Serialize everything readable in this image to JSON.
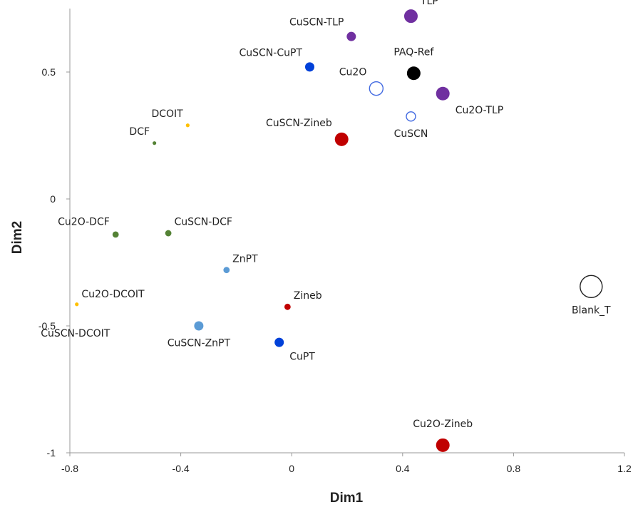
{
  "chart_data": {
    "type": "scatter",
    "title": "",
    "xlabel": "Dim1",
    "ylabel": "Dim2",
    "xlim": [
      -0.8,
      1.2
    ],
    "ylim": [
      -1,
      0.75
    ],
    "xticks": [
      -0.8,
      -0.4,
      0,
      0.4,
      0.8,
      1.2
    ],
    "xtick_labels": [
      "-0.8",
      "-0.4",
      "0",
      "0.4",
      "0.8",
      "1.2"
    ],
    "yticks": [
      -1,
      -0.5,
      0,
      0.5
    ],
    "ytick_labels": [
      "-1",
      "-0.5",
      "0",
      "0.5"
    ],
    "grid": false,
    "legend": "none",
    "points": [
      {
        "label": "TLP",
        "x": 0.43,
        "y": 0.72,
        "color": "#7030a0",
        "fill": true,
        "size": "large",
        "label_pos": "upper-right"
      },
      {
        "label": "CuSCN-TLP",
        "x": 0.215,
        "y": 0.64,
        "color": "#7030a0",
        "fill": true,
        "size": "medium",
        "label_pos": "upper-left"
      },
      {
        "label": "CuSCN-CuPT",
        "x": 0.065,
        "y": 0.52,
        "color": "#0041d9",
        "fill": true,
        "size": "medium",
        "label_pos": "upper-left"
      },
      {
        "label": "PAQ-Ref",
        "x": 0.44,
        "y": 0.495,
        "color": "#000000",
        "fill": true,
        "size": "large",
        "label_pos": "above"
      },
      {
        "label": "Cu2O",
        "x": 0.305,
        "y": 0.435,
        "color": "#4169e1",
        "fill": false,
        "size": "large",
        "label_pos": "upper-left"
      },
      {
        "label": "Cu2O-TLP",
        "x": 0.545,
        "y": 0.415,
        "color": "#7030a0",
        "fill": true,
        "size": "large",
        "label_pos": "lower-right"
      },
      {
        "label": "CuSCN",
        "x": 0.43,
        "y": 0.325,
        "color": "#4169e1",
        "fill": false,
        "size": "medium",
        "label_pos": "below"
      },
      {
        "label": "CuSCN-Zineb",
        "x": 0.18,
        "y": 0.235,
        "color": "#c00000",
        "fill": true,
        "size": "large",
        "label_pos": "upper-left"
      },
      {
        "label": "DCOIT",
        "x": -0.375,
        "y": 0.29,
        "color": "#ffc000",
        "fill": true,
        "size": "tiny",
        "label_pos": "upper-left"
      },
      {
        "label": "DCF",
        "x": -0.495,
        "y": 0.22,
        "color": "#548235",
        "fill": true,
        "size": "tiny",
        "label_pos": "upper-left"
      },
      {
        "label": "Cu2O-DCF",
        "x": -0.635,
        "y": -0.14,
        "color": "#548235",
        "fill": true,
        "size": "small",
        "label_pos": "upper-left"
      },
      {
        "label": "CuSCN-DCF",
        "x": -0.445,
        "y": -0.135,
        "color": "#548235",
        "fill": true,
        "size": "small",
        "label_pos": "upper-right"
      },
      {
        "label": "ZnPT",
        "x": -0.235,
        "y": -0.28,
        "color": "#5b9bd5",
        "fill": true,
        "size": "small",
        "label_pos": "upper-right"
      },
      {
        "label": "Cu2O-DCOIT",
        "x": -0.775,
        "y": -0.415,
        "color": "#ffc000",
        "fill": true,
        "size": "tiny",
        "label_pos": "upper-right"
      },
      {
        "label": "CuSCN-DCOIT",
        "x": -0.78,
        "y": -0.48,
        "color": "#ffc000",
        "fill": false,
        "size": "none",
        "label_pos": "below"
      },
      {
        "label": "Zineb",
        "x": -0.015,
        "y": -0.425,
        "color": "#c00000",
        "fill": true,
        "size": "small",
        "label_pos": "upper-right"
      },
      {
        "label": "CuSCN-ZnPT",
        "x": -0.335,
        "y": -0.5,
        "color": "#5b9bd5",
        "fill": true,
        "size": "medium",
        "label_pos": "below"
      },
      {
        "label": "CuPT",
        "x": -0.045,
        "y": -0.565,
        "color": "#0041d9",
        "fill": true,
        "size": "medium",
        "label_pos": "lower-right"
      },
      {
        "label": "Blank_T",
        "x": 1.08,
        "y": -0.345,
        "color": "#222222",
        "fill": false,
        "size": "xlarge",
        "label_pos": "below"
      },
      {
        "label": "Cu2O-Zineb",
        "x": 0.545,
        "y": -0.97,
        "color": "#c00000",
        "fill": true,
        "size": "large",
        "label_pos": "above"
      }
    ]
  }
}
